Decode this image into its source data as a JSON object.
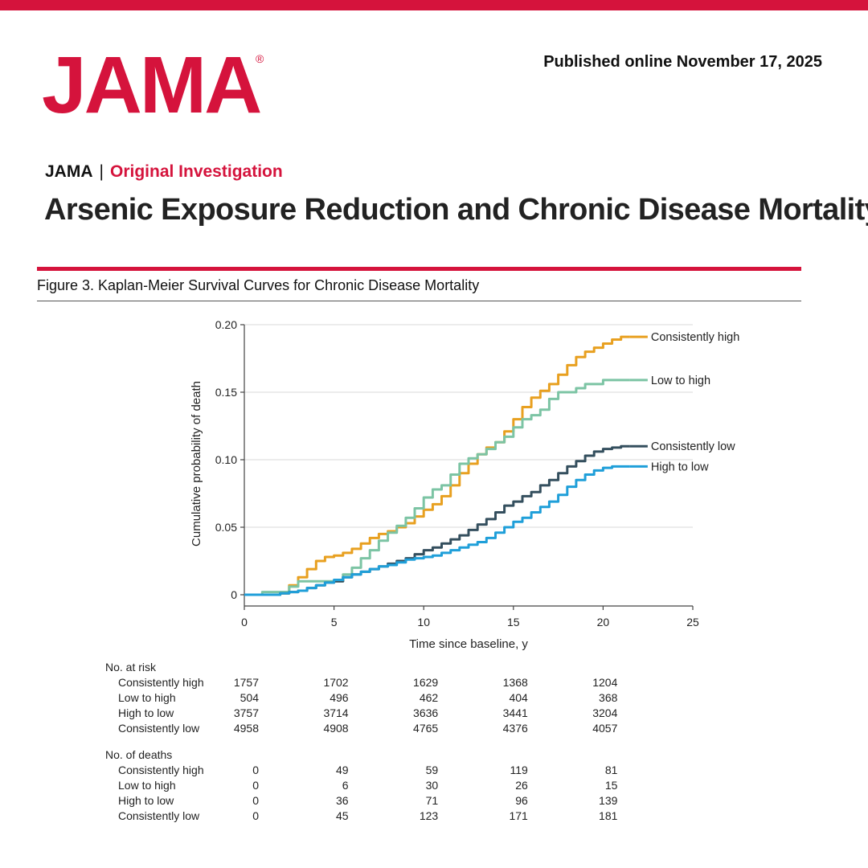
{
  "header": {
    "logo_text": "JAMA",
    "logo_mark": "®",
    "published": "Published online November 17, 2025",
    "journal": "JAMA",
    "separator": "|",
    "article_type": "Original Investigation",
    "article_title": "Arsenic Exposure Reduction and Chronic Disease Mortality"
  },
  "figure": {
    "title": "Figure 3. Kaplan-Meier Survival Curves for Chronic Disease Mortality"
  },
  "colors": {
    "brand_red": "#d5133c",
    "consistently_high": "#e8a020",
    "low_to_high": "#7cc4a4",
    "consistently_low": "#344f5e",
    "high_to_low": "#1f9fd9"
  },
  "chart_data": {
    "type": "line",
    "step": true,
    "xlabel": "Time since baseline, y",
    "ylabel": "Cumulative probability of death",
    "xlim": [
      0,
      25
    ],
    "ylim": [
      0,
      0.2
    ],
    "xticks": [
      0,
      5,
      10,
      15,
      20,
      25
    ],
    "xtick_labels": [
      "0",
      "5",
      "10",
      "15",
      "20",
      "25"
    ],
    "yticks": [
      0,
      0.05,
      0.1,
      0.15,
      0.2
    ],
    "ytick_labels": [
      "0",
      "0.05",
      "0.10",
      "0.15",
      "0.20"
    ],
    "grid": "horizontal",
    "legend": "inline-right",
    "series": [
      {
        "name": "Consistently high",
        "color": "#e8a020",
        "x": [
          0,
          1,
          2,
          2.5,
          3,
          3.5,
          4,
          4.5,
          5,
          5.5,
          6,
          6.5,
          7,
          7.5,
          8,
          8.5,
          9,
          9.5,
          10,
          10.5,
          11,
          11.5,
          12,
          12.5,
          13,
          13.5,
          14,
          14.5,
          15,
          15.5,
          16,
          16.5,
          17,
          17.5,
          18,
          18.5,
          19,
          19.5,
          20,
          20.5,
          21,
          21.5
        ],
        "y": [
          0,
          0,
          0.001,
          0.007,
          0.013,
          0.019,
          0.025,
          0.028,
          0.029,
          0.031,
          0.034,
          0.038,
          0.042,
          0.045,
          0.047,
          0.05,
          0.053,
          0.058,
          0.063,
          0.067,
          0.073,
          0.081,
          0.09,
          0.097,
          0.104,
          0.109,
          0.113,
          0.121,
          0.13,
          0.139,
          0.146,
          0.151,
          0.156,
          0.163,
          0.17,
          0.176,
          0.18,
          0.183,
          0.186,
          0.189,
          0.191,
          0.191
        ]
      },
      {
        "name": "Low to high",
        "color": "#7cc4a4",
        "x": [
          0,
          1,
          2,
          2.5,
          3,
          3.5,
          4,
          4.5,
          5,
          5.5,
          6,
          6.5,
          7,
          7.5,
          8,
          8.5,
          9,
          9.5,
          10,
          10.5,
          11,
          11.5,
          12,
          12.5,
          13,
          13.5,
          14,
          14.5,
          15,
          15.5,
          16,
          16.5,
          17,
          17.5,
          18,
          18.5,
          19,
          19.5,
          20,
          20.5,
          21,
          21.5
        ],
        "y": [
          0,
          0.002,
          0.002,
          0.006,
          0.01,
          0.01,
          0.01,
          0.01,
          0.01,
          0.015,
          0.02,
          0.027,
          0.033,
          0.04,
          0.046,
          0.051,
          0.057,
          0.064,
          0.072,
          0.078,
          0.081,
          0.089,
          0.097,
          0.101,
          0.104,
          0.108,
          0.113,
          0.117,
          0.124,
          0.13,
          0.133,
          0.137,
          0.145,
          0.15,
          0.15,
          0.153,
          0.156,
          0.156,
          0.159,
          0.159,
          0.159,
          0.159
        ]
      },
      {
        "name": "Consistently low",
        "color": "#344f5e",
        "x": [
          0,
          1,
          2,
          2.5,
          3,
          3.5,
          4,
          4.5,
          5,
          5.5,
          6,
          6.5,
          7,
          7.5,
          8,
          8.5,
          9,
          9.5,
          10,
          10.5,
          11,
          11.5,
          12,
          12.5,
          13,
          13.5,
          14,
          14.5,
          15,
          15.5,
          16,
          16.5,
          17,
          17.5,
          18,
          18.5,
          19,
          19.5,
          20,
          20.5,
          21,
          21.5
        ],
        "y": [
          0,
          0,
          0.001,
          0.002,
          0.003,
          0.005,
          0.007,
          0.009,
          0.01,
          0.013,
          0.015,
          0.017,
          0.019,
          0.021,
          0.023,
          0.025,
          0.027,
          0.03,
          0.033,
          0.035,
          0.038,
          0.041,
          0.044,
          0.048,
          0.052,
          0.056,
          0.061,
          0.066,
          0.069,
          0.073,
          0.076,
          0.081,
          0.085,
          0.09,
          0.095,
          0.099,
          0.103,
          0.106,
          0.108,
          0.109,
          0.11,
          0.11
        ]
      },
      {
        "name": "High to low",
        "color": "#1f9fd9",
        "x": [
          0,
          1,
          2,
          2.5,
          3,
          3.5,
          4,
          4.5,
          5,
          5.5,
          6,
          6.5,
          7,
          7.5,
          8,
          8.5,
          9,
          9.5,
          10,
          10.5,
          11,
          11.5,
          12,
          12.5,
          13,
          13.5,
          14,
          14.5,
          15,
          15.5,
          16,
          16.5,
          17,
          17.5,
          18,
          18.5,
          19,
          19.5,
          20,
          20.5,
          21,
          21.5
        ],
        "y": [
          0,
          0,
          0.001,
          0.002,
          0.003,
          0.005,
          0.007,
          0.009,
          0.011,
          0.013,
          0.015,
          0.017,
          0.019,
          0.021,
          0.022,
          0.024,
          0.026,
          0.027,
          0.028,
          0.029,
          0.031,
          0.033,
          0.035,
          0.037,
          0.039,
          0.042,
          0.046,
          0.05,
          0.054,
          0.057,
          0.061,
          0.065,
          0.069,
          0.074,
          0.08,
          0.085,
          0.089,
          0.092,
          0.094,
          0.095,
          0.095,
          0.095
        ]
      }
    ]
  },
  "risk_table": {
    "at_risk_heading": "No. at risk",
    "deaths_heading": "No. of deaths",
    "time_points": [
      0,
      5,
      10,
      15,
      20
    ],
    "at_risk": [
      {
        "label": "Consistently high",
        "values": [
          "1757",
          "1702",
          "1629",
          "1368",
          "1204"
        ]
      },
      {
        "label": "Low to high",
        "values": [
          "504",
          "496",
          "462",
          "404",
          "368"
        ]
      },
      {
        "label": "High to low",
        "values": [
          "3757",
          "3714",
          "3636",
          "3441",
          "3204"
        ]
      },
      {
        "label": "Consistently low",
        "values": [
          "4958",
          "4908",
          "4765",
          "4376",
          "4057"
        ]
      }
    ],
    "deaths": [
      {
        "label": "Consistently high",
        "values": [
          "0",
          "49",
          "59",
          "119",
          "81"
        ]
      },
      {
        "label": "Low to high",
        "values": [
          "0",
          "6",
          "30",
          "26",
          "15"
        ]
      },
      {
        "label": "High to low",
        "values": [
          "0",
          "36",
          "71",
          "96",
          "139"
        ]
      },
      {
        "label": "Consistently low",
        "values": [
          "0",
          "45",
          "123",
          "171",
          "181"
        ]
      }
    ]
  }
}
